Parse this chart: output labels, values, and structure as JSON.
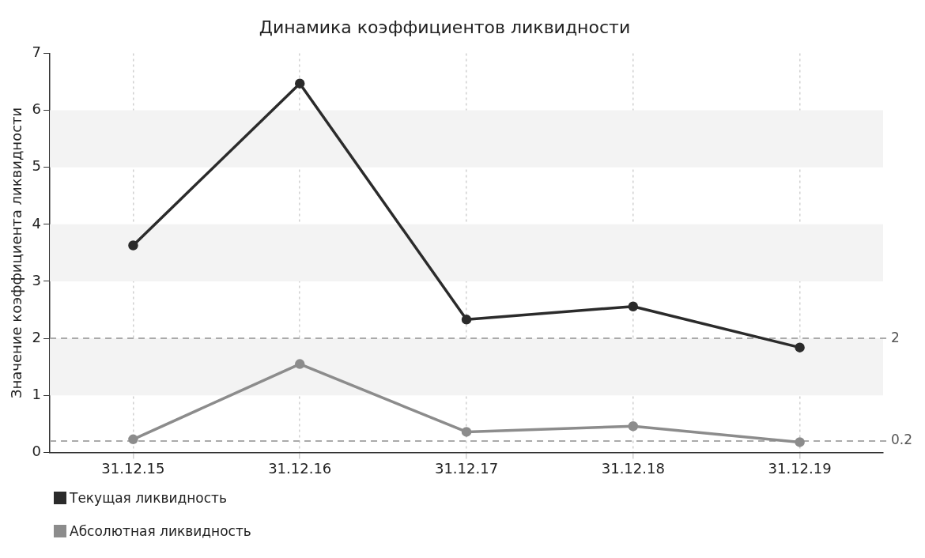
{
  "chart_data": {
    "type": "line",
    "title": "Динамика коэффициентов ликвидности",
    "ylabel": "Значение коэффициента ликвидности",
    "categories": [
      "31.12.15",
      "31.12.16",
      "31.12.17",
      "31.12.18",
      "31.12.19"
    ],
    "series": [
      {
        "name": "Текущая ликвидность",
        "color": "#2b2b2b",
        "values": [
          3.63,
          6.47,
          2.33,
          2.56,
          1.84
        ]
      },
      {
        "name": "Абсолютная ликвидность",
        "color": "#8c8c8c",
        "values": [
          0.23,
          1.55,
          0.36,
          0.46,
          0.18
        ]
      }
    ],
    "ylim": [
      0,
      7
    ],
    "yticks": [
      0,
      1,
      2,
      3,
      4,
      5,
      6,
      7
    ],
    "grid": "x",
    "legend": "bottom left",
    "marker": "circle",
    "line_style": "solid",
    "bands": [
      {
        "axis": "y",
        "from": 1,
        "to": 2,
        "color": "#f3f3f3"
      },
      {
        "axis": "y",
        "from": 3,
        "to": 4,
        "color": "#f3f3f3"
      },
      {
        "axis": "y",
        "from": 5,
        "to": 6,
        "color": "#f3f3f3"
      }
    ],
    "ref_lines": [
      {
        "axis": "y",
        "value": 2,
        "label": "2",
        "color": "#aaaaaa",
        "line_style": "dashed"
      },
      {
        "axis": "y",
        "value": 0.2,
        "label": "0.2",
        "color": "#aaaaaa",
        "line_style": "dashed"
      }
    ]
  }
}
